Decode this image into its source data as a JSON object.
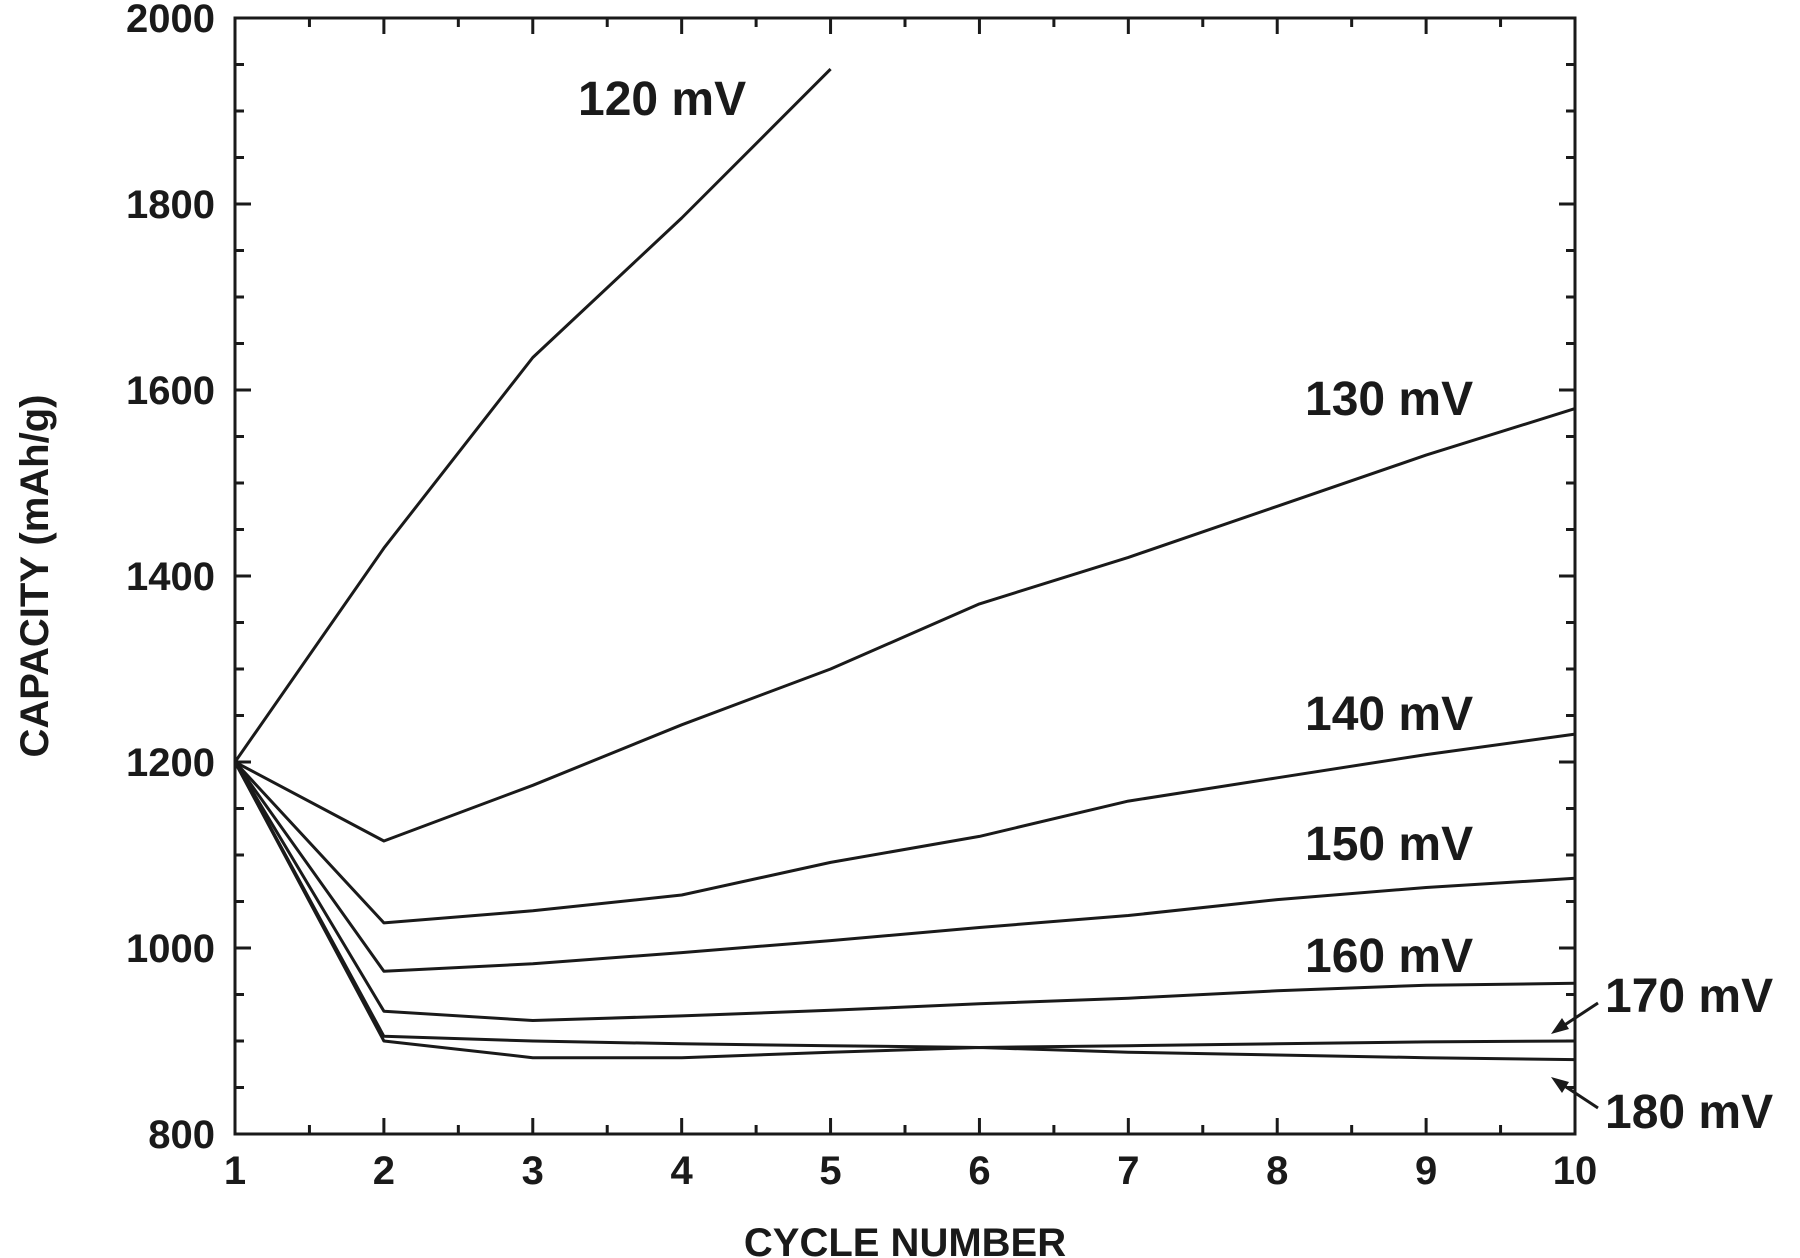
{
  "chart_data": {
    "type": "line",
    "xlabel": "CYCLE NUMBER",
    "ylabel": "CAPACITY (mAh/g)",
    "xlim": [
      1,
      10
    ],
    "ylim": [
      800,
      2000
    ],
    "x_ticks": [
      1,
      2,
      3,
      4,
      5,
      6,
      7,
      8,
      9,
      10
    ],
    "y_ticks": [
      800,
      1000,
      1200,
      1400,
      1600,
      1800,
      2000
    ],
    "grid": false,
    "legend": "inline labels",
    "series": [
      {
        "name": "120 mV",
        "x": [
          1,
          2,
          3,
          4,
          5
        ],
        "values": [
          1200,
          1430,
          1635,
          1785,
          1945
        ]
      },
      {
        "name": "130 mV",
        "x": [
          1,
          2,
          3,
          4,
          5,
          6,
          7,
          8,
          9,
          10
        ],
        "values": [
          1200,
          1115,
          1175,
          1240,
          1300,
          1370,
          1420,
          1475,
          1530,
          1580
        ]
      },
      {
        "name": "140 mV",
        "x": [
          1,
          2,
          3,
          4,
          5,
          6,
          7,
          8,
          9,
          10
        ],
        "values": [
          1200,
          1027,
          1040,
          1057,
          1092,
          1120,
          1158,
          1183,
          1208,
          1230
        ]
      },
      {
        "name": "150 mV",
        "x": [
          1,
          2,
          3,
          4,
          5,
          6,
          7,
          8,
          9,
          10
        ],
        "values": [
          1200,
          975,
          983,
          995,
          1008,
          1022,
          1035,
          1052,
          1065,
          1075
        ]
      },
      {
        "name": "160 mV",
        "x": [
          1,
          2,
          3,
          4,
          5,
          6,
          7,
          8,
          9,
          10
        ],
        "values": [
          1200,
          932,
          922,
          927,
          933,
          940,
          946,
          954,
          960,
          962
        ]
      },
      {
        "name": "170 mV",
        "x": [
          1,
          2,
          3,
          4,
          5,
          6,
          7,
          8,
          9,
          10
        ],
        "values": [
          1200,
          905,
          900,
          897,
          895,
          893,
          895,
          897,
          899,
          900
        ]
      },
      {
        "name": "180 mV",
        "x": [
          1,
          2,
          3,
          4,
          5,
          6,
          7,
          8,
          9,
          10
        ],
        "values": [
          1200,
          900,
          882,
          882,
          888,
          893,
          888,
          885,
          882,
          880
        ]
      }
    ]
  }
}
